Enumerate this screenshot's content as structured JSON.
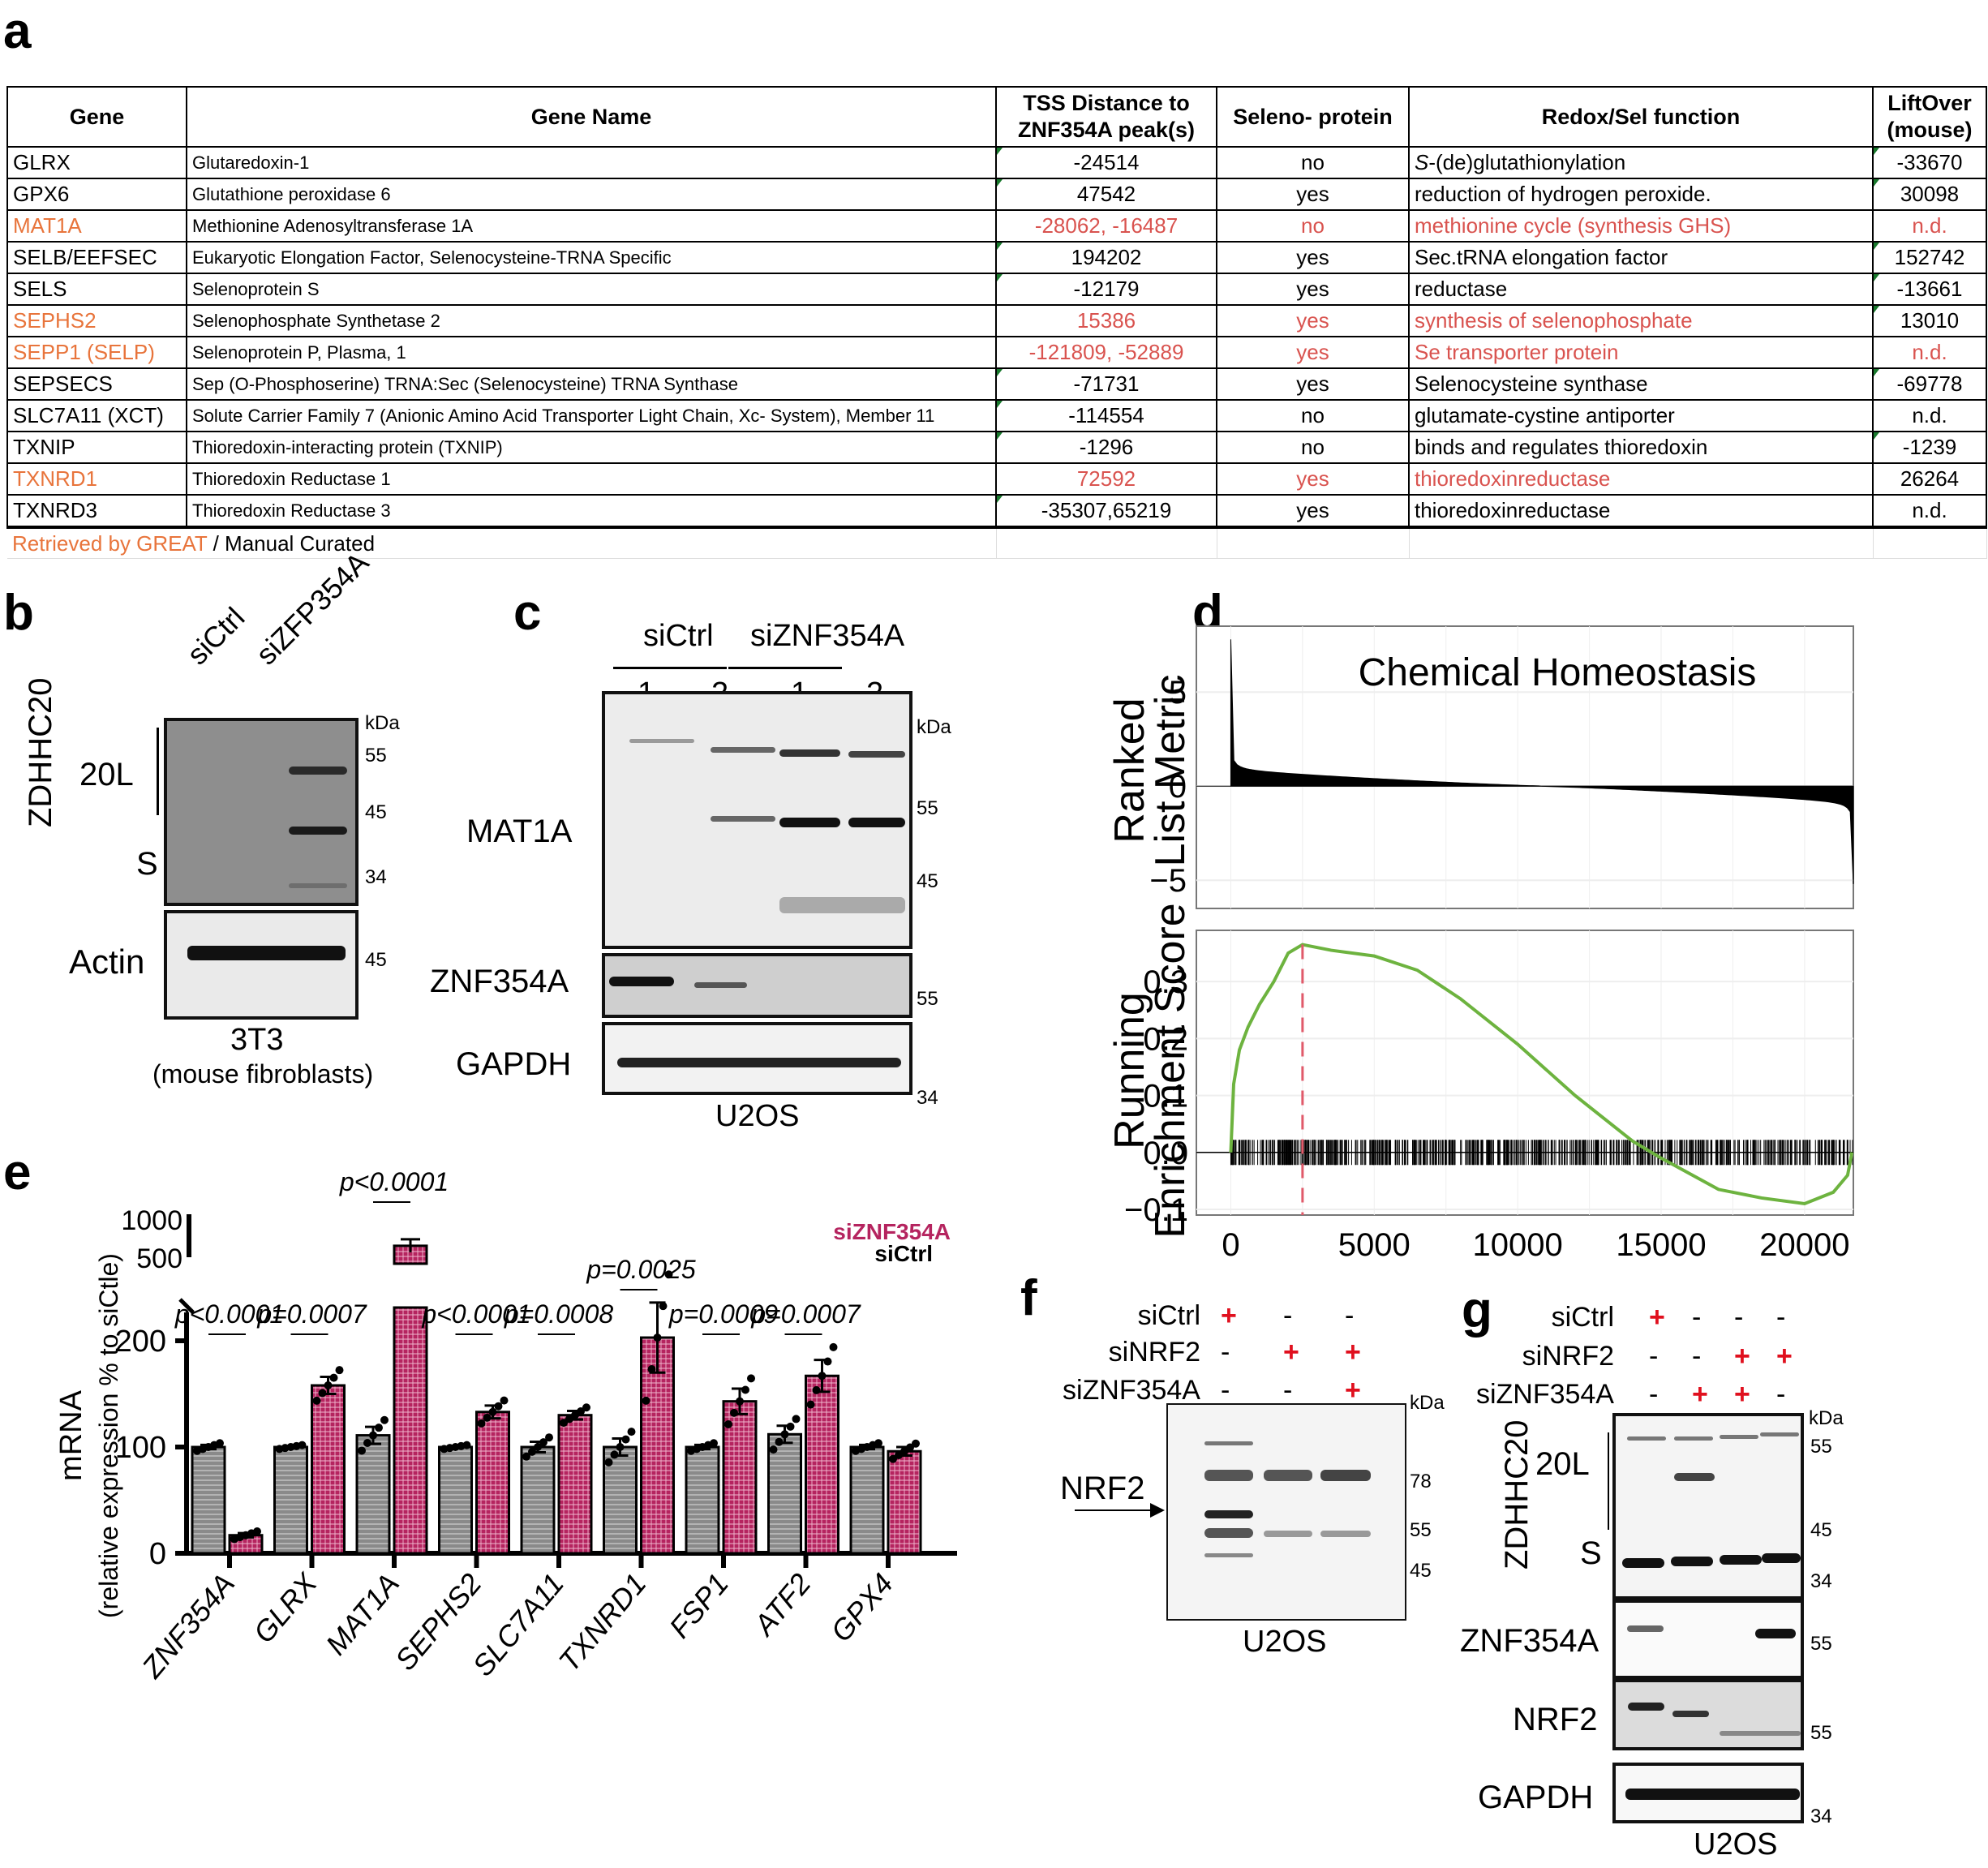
{
  "panels": {
    "a": "a",
    "b": "b",
    "c": "c",
    "d": "d",
    "e": "e",
    "f": "f",
    "g": "g"
  },
  "table": {
    "headers": [
      "Gene",
      "Gene Name",
      "TSS Distance to ZNF354A peak(s)",
      "Seleno- protein",
      "Redox/Sel function",
      "LiftOver (mouse)"
    ],
    "rows": [
      {
        "gene": "GLRX",
        "name": "Glutaredoxin-1",
        "tss": "-24514",
        "seleno": "no",
        "function_prefix": "S",
        "function": "-(de)glutathionylation",
        "liftover": "-33670",
        "great": false
      },
      {
        "gene": "GPX6",
        "name": "Glutathione peroxidase 6",
        "tss": "47542",
        "seleno": "yes",
        "function_prefix": "",
        "function": "reduction of hydrogen peroxide.",
        "liftover": "30098",
        "great": false
      },
      {
        "gene": "MAT1A",
        "name": "Methionine Adenosyltransferase 1A",
        "tss": "-28062, -16487",
        "seleno": "no",
        "function_prefix": "",
        "function": "methionine cycle (synthesis GHS)",
        "liftover": "n.d.",
        "great": true
      },
      {
        "gene": "SELB/EEFSEC",
        "name": "Eukaryotic Elongation Factor, Selenocysteine-TRNA Specific",
        "tss": "194202",
        "seleno": "yes",
        "function_prefix": "",
        "function": "Sec.tRNA elongation factor",
        "liftover": "152742",
        "great": false
      },
      {
        "gene": "SELS",
        "name": "Selenoprotein S",
        "tss": "-12179",
        "seleno": "yes",
        "function_prefix": "",
        "function": "reductase",
        "liftover": "-13661",
        "great": false
      },
      {
        "gene": "SEPHS2",
        "name": "Selenophosphate Synthetase 2",
        "tss": "15386",
        "seleno": "yes",
        "function_prefix": "",
        "function": "synthesis of selenophosphate",
        "liftover": "13010",
        "great": true,
        "liftover_black": true
      },
      {
        "gene": "SEPP1 (SELP)",
        "name": "Selenoprotein P, Plasma, 1",
        "tss": "-121809, -52889",
        "seleno": "yes",
        "function_prefix": "",
        "function": "Se transporter protein",
        "liftover": "n.d.",
        "great": true
      },
      {
        "gene": "SEPSECS",
        "name": "Sep (O-Phosphoserine) TRNA:Sec (Selenocysteine) TRNA Synthase",
        "tss": "-71731",
        "seleno": "yes",
        "function_prefix": "",
        "function": "Selenocysteine synthase",
        "liftover": "-69778",
        "great": false
      },
      {
        "gene": "SLC7A11 (XCT)",
        "name": "Solute Carrier Family 7 (Anionic Amino Acid Transporter Light Chain, Xc- System), Member 11",
        "tss": "-114554",
        "seleno": "no",
        "function_prefix": "",
        "function": "glutamate-cystine antiporter",
        "liftover": "n.d.",
        "great": false
      },
      {
        "gene": "TXNIP",
        "name": "Thioredoxin-interacting protein (TXNIP)",
        "tss": "-1296",
        "seleno": "no",
        "function_prefix": "",
        "function": "binds and regulates thioredoxin",
        "liftover": "-1239",
        "great": false
      },
      {
        "gene": "TXNRD1",
        "name": "Thioredoxin Reductase 1",
        "tss": "72592",
        "seleno": "yes",
        "function_prefix": "",
        "function": "thioredoxinreductase",
        "liftover": "26264",
        "great": true,
        "liftover_black": true
      },
      {
        "gene": "TXNRD3",
        "name": "Thioredoxin Reductase 3",
        "tss": "-35307,65219",
        "seleno": "yes",
        "function_prefix": "",
        "function": "thioredoxinreductase",
        "liftover": "n.d.",
        "great": false
      }
    ],
    "footnote_great": "Retrieved by GREAT",
    "footnote_rest": " / Manual Curated"
  },
  "panel_b": {
    "lanes": [
      "siCtrl",
      "siZFP354A"
    ],
    "protein": "ZDHHC20",
    "isoform_long": "20L",
    "isoform_short": "S",
    "loading": "Actin",
    "kda_label": "kDa",
    "markers_top": [
      "55",
      "45",
      "34"
    ],
    "markers_bottom": [
      "45"
    ],
    "cell_line": "3T3",
    "cell_desc": "(mouse fibroblasts)"
  },
  "panel_c": {
    "groups": [
      "siCtrl",
      "siZNF354A"
    ],
    "replicates": [
      "1",
      "2",
      "1",
      "2"
    ],
    "rows": [
      "MAT1A",
      "ZNF354A",
      "GAPDH"
    ],
    "kda_label": "kDa",
    "markers_mat1a": [
      "55",
      "45"
    ],
    "markers_znf": [
      "55"
    ],
    "markers_gapdh": [
      "34"
    ],
    "cell_line": "U2OS"
  },
  "panel_f": {
    "conditions": [
      {
        "label": "siCtrl",
        "values": [
          "+",
          "-",
          "-"
        ]
      },
      {
        "label": "siNRF2",
        "values": [
          "-",
          "+",
          "+"
        ]
      },
      {
        "label": "siZNF354A",
        "values": [
          "-",
          "-",
          "+"
        ]
      }
    ],
    "arrow_label": "NRF2",
    "kda_label": "kDa",
    "markers": [
      "78",
      "55",
      "45"
    ],
    "cell_line": "U2OS"
  },
  "panel_g": {
    "conditions": [
      {
        "label": "siCtrl",
        "values": [
          "+",
          "-",
          "-",
          "-"
        ]
      },
      {
        "label": "siNRF2",
        "values": [
          "-",
          "-",
          "+",
          "+"
        ]
      },
      {
        "label": "siZNF354A",
        "values": [
          "-",
          "+",
          "+",
          "-"
        ]
      }
    ],
    "protein": "ZDHHC20",
    "isoform_long": "20L",
    "isoform_short": "S",
    "rows": [
      "ZNF354A",
      "NRF2",
      "GAPDH"
    ],
    "kda_label": "kDa",
    "markers_top": [
      "55",
      "45",
      "34"
    ],
    "markers_znf": [
      "55"
    ],
    "markers_nrf2": [
      "55"
    ],
    "markers_gapdh": [
      "34"
    ],
    "cell_line": "U2OS"
  },
  "colors": {
    "great_orange": "#e8743b",
    "great_red": "#d9534f",
    "siZNF354A": "#b5245f",
    "siCtrl_bar": "#8a8a8a",
    "gsea_line": "#6db33f",
    "gsea_peak": "#e05a6a",
    "plus_red": "#e0101e"
  },
  "chart_data": [
    {
      "type": "bar",
      "id": "e",
      "title": "",
      "ylabel": "mRNA",
      "ylabel2": "(relative expression % to siCtle)",
      "categories": [
        "ZNF354A",
        "GLRX",
        "MAT1A",
        "SEPHS2",
        "SLC7A11",
        "TXNRD1",
        "FSP1",
        "ATF2",
        "GPX4"
      ],
      "series": [
        {
          "name": "siCtrl",
          "values": [
            100,
            100,
            111,
            100,
            100,
            100,
            100,
            112,
            100
          ],
          "sem": [
            2,
            1,
            8,
            1,
            5,
            8,
            2,
            8,
            2
          ]
        },
        {
          "name": "siZNF354A",
          "values": [
            17,
            158,
            650,
            133,
            130,
            203,
            143,
            167,
            96
          ],
          "sem": [
            2,
            8,
            60,
            6,
            4,
            33,
            12,
            15,
            4
          ]
        }
      ],
      "p_values": [
        "p<0.0001",
        "p=0.0007",
        "p<0.0001",
        "p<0.0001",
        "p=0.0008",
        "p=0.0025",
        "p=0.0009",
        "p=0.0007",
        ""
      ],
      "yticks_lower": [
        0,
        100,
        200
      ],
      "yticks_upper": [
        500,
        1000
      ],
      "ylim_lower": [
        0,
        260
      ],
      "ylim_upper": [
        450,
        1000
      ],
      "axis_break": true,
      "legend": [
        "siZNF354A",
        "siCtrl"
      ],
      "legend_position": "top-right"
    },
    {
      "type": "line",
      "id": "d",
      "title": "Chemical Homeostasis",
      "top_panel": {
        "ylabel": "Ranked List Metric",
        "yticks": [
          5,
          0,
          -5
        ],
        "ylim": [
          -6.5,
          8.5
        ],
        "max_metric": 7.8,
        "min_metric": -5.2,
        "n_genes": 21700
      },
      "bottom_panel": {
        "ylabel": "Running Enrichment Score",
        "yticks": [
          0.0,
          0.1,
          0.2,
          0.3,
          -0.1
        ],
        "ylim": [
          -0.11,
          0.39
        ],
        "xticks": [
          0,
          5000,
          10000,
          15000,
          20000
        ],
        "xlim": [
          -1200,
          21700
        ],
        "peak_x": 2500,
        "peak_es": 0.365,
        "curve": [
          [
            0,
            0
          ],
          [
            100,
            0.12
          ],
          [
            300,
            0.18
          ],
          [
            600,
            0.22
          ],
          [
            1000,
            0.26
          ],
          [
            1500,
            0.3
          ],
          [
            2000,
            0.35
          ],
          [
            2500,
            0.365
          ],
          [
            3500,
            0.355
          ],
          [
            5000,
            0.345
          ],
          [
            6500,
            0.32
          ],
          [
            8000,
            0.27
          ],
          [
            10000,
            0.19
          ],
          [
            12000,
            0.1
          ],
          [
            14000,
            0.02
          ],
          [
            15000,
            -0.01
          ],
          [
            17000,
            -0.065
          ],
          [
            18500,
            -0.08
          ],
          [
            20000,
            -0.09
          ],
          [
            21000,
            -0.07
          ],
          [
            21500,
            -0.04
          ],
          [
            21650,
            0
          ]
        ]
      }
    }
  ]
}
